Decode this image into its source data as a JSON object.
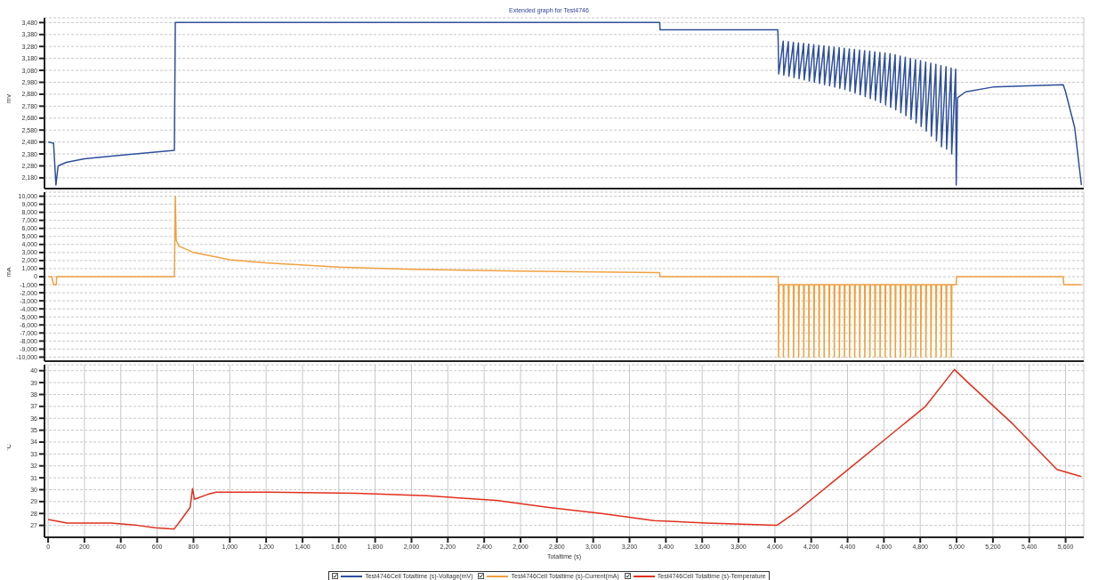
{
  "chart_data": [
    {
      "type": "line",
      "title": "Extended graph for Test4746",
      "ylabel": "mV",
      "grid": true,
      "legend": "bottom",
      "tick_labels": "y",
      "xlim": [
        -20,
        5700
      ],
      "xticks": [
        0,
        200,
        400,
        600,
        800,
        1000,
        1200,
        1400,
        1600,
        1800,
        2000,
        2200,
        2400,
        2600,
        2800,
        3000,
        3200,
        3400,
        3600,
        3800,
        4000,
        4200,
        4400,
        4600,
        4800,
        5000,
        5200,
        5400,
        5600
      ],
      "ylim": [
        2090,
        3520
      ],
      "yticks": [
        {
          "value": 2180,
          "label": "2,180"
        },
        {
          "value": 2280,
          "label": "2,280"
        },
        {
          "value": 2380,
          "label": "2,380"
        },
        {
          "value": 2480,
          "label": "2,480"
        },
        {
          "value": 2580,
          "label": "2,580"
        },
        {
          "value": 2680,
          "label": "2,680"
        },
        {
          "value": 2780,
          "label": "2,780"
        },
        {
          "value": 2880,
          "label": "2,880"
        },
        {
          "value": 2980,
          "label": "2,980"
        },
        {
          "value": 3080,
          "label": "3,080"
        },
        {
          "value": 3180,
          "label": "3,180"
        },
        {
          "value": 3280,
          "label": "3,280"
        },
        {
          "value": 3380,
          "label": "3,380"
        },
        {
          "value": 3480,
          "label": "3,480"
        }
      ],
      "x": [
        0,
        30,
        43,
        55,
        100,
        200,
        400,
        695,
        700,
        3366,
        3368,
        4016,
        4018,
        4021,
        4046,
        4049,
        4074,
        4077,
        4102,
        4105,
        4130,
        4133,
        4158,
        4161,
        4186,
        4189,
        4214,
        4217,
        4242,
        4245,
        4270,
        4273,
        4298,
        4301,
        4326,
        4329,
        4354,
        4357,
        4382,
        4385,
        4410,
        4413,
        4438,
        4441,
        4466,
        4469,
        4494,
        4497,
        4522,
        4525,
        4550,
        4553,
        4578,
        4581,
        4606,
        4609,
        4634,
        4637,
        4662,
        4665,
        4690,
        4693,
        4718,
        4721,
        4746,
        4749,
        4774,
        4777,
        4802,
        4805,
        4830,
        4833,
        4858,
        4861,
        4886,
        4889,
        4914,
        4917,
        4942,
        4945,
        4970,
        4973,
        4995,
        4998,
        5005,
        5050,
        5200,
        5587,
        5600,
        5650,
        5687
      ],
      "series": [
        {
          "name": "Test4746Cell Totaltime (s)-Voltage(mV)",
          "color": "#2e4f9a",
          "values": [
            2480,
            2470,
            2120,
            2280,
            2310,
            2340,
            2370,
            2410,
            3480,
            3480,
            3420,
            3420,
            3330,
            3050,
            3325,
            3040,
            3320,
            3030,
            3315,
            3020,
            3310,
            3010,
            3305,
            3000,
            3300,
            2990,
            3295,
            2980,
            3290,
            2970,
            3285,
            2960,
            3280,
            2950,
            3275,
            2940,
            3270,
            2930,
            3265,
            2920,
            3260,
            2905,
            3255,
            2890,
            3250,
            2875,
            3245,
            2860,
            3240,
            2845,
            3235,
            2830,
            3230,
            2810,
            3225,
            2790,
            3220,
            2770,
            3210,
            2750,
            3200,
            2725,
            3190,
            2700,
            3180,
            2670,
            3170,
            2640,
            3160,
            2610,
            3150,
            2570,
            3140,
            2530,
            3130,
            2490,
            3120,
            2440,
            3110,
            2420,
            3100,
            2380,
            3090,
            2120,
            2850,
            2900,
            2940,
            2960,
            2900,
            2600,
            2120
          ]
        }
      ]
    },
    {
      "type": "line",
      "ylabel": "mA",
      "grid": true,
      "legend": "bottom",
      "tick_labels": "y",
      "xlim": [
        -20,
        5700
      ],
      "xticks": [
        0,
        200,
        400,
        600,
        800,
        1000,
        1200,
        1400,
        1600,
        1800,
        2000,
        2200,
        2400,
        2600,
        2800,
        3000,
        3200,
        3400,
        3600,
        3800,
        4000,
        4200,
        4400,
        4600,
        4800,
        5000,
        5200,
        5400,
        5600
      ],
      "ylim": [
        -10500,
        10500
      ],
      "yticks": [
        {
          "value": -10000,
          "label": "-10,000"
        },
        {
          "value": -9000,
          "label": "-9,000"
        },
        {
          "value": -8000,
          "label": "-8,000"
        },
        {
          "value": -7000,
          "label": "-7,000"
        },
        {
          "value": -6000,
          "label": "-6,000"
        },
        {
          "value": -5000,
          "label": "-5,000"
        },
        {
          "value": -4000,
          "label": "-4,000"
        },
        {
          "value": -3000,
          "label": "-3,000"
        },
        {
          "value": -2000,
          "label": "-2,000"
        },
        {
          "value": -1000,
          "label": "-1,000"
        },
        0,
        {
          "value": 1000,
          "label": "1,000"
        },
        {
          "value": 2000,
          "label": "2,000"
        },
        {
          "value": 3000,
          "label": "3,000"
        },
        {
          "value": 4000,
          "label": "4,000"
        },
        {
          "value": 5000,
          "label": "5,000"
        },
        {
          "value": 6000,
          "label": "6,000"
        },
        {
          "value": 7000,
          "label": "7,000"
        },
        {
          "value": 8000,
          "label": "8,000"
        },
        {
          "value": 9000,
          "label": "9,000"
        },
        {
          "value": 10000,
          "label": "10,000"
        }
      ],
      "x": [
        0,
        20,
        30,
        45,
        47,
        695,
        700,
        705,
        720,
        800,
        1000,
        1200,
        1600,
        2000,
        2600,
        3366,
        3368,
        4018,
        4019,
        4020,
        4023,
        4046,
        4047,
        4050,
        4074,
        4075,
        4078,
        4102,
        4103,
        4106,
        4130,
        4131,
        4134,
        4158,
        4159,
        4162,
        4186,
        4187,
        4190,
        4214,
        4215,
        4218,
        4242,
        4243,
        4246,
        4270,
        4271,
        4274,
        4298,
        4299,
        4302,
        4326,
        4327,
        4330,
        4354,
        4355,
        4358,
        4382,
        4383,
        4386,
        4410,
        4411,
        4414,
        4438,
        4439,
        4442,
        4466,
        4467,
        4470,
        4494,
        4495,
        4498,
        4522,
        4523,
        4526,
        4550,
        4551,
        4554,
        4578,
        4579,
        4582,
        4606,
        4607,
        4610,
        4634,
        4635,
        4638,
        4662,
        4663,
        4666,
        4690,
        4691,
        4694,
        4718,
        4719,
        4722,
        4746,
        4747,
        4750,
        4774,
        4775,
        4778,
        4802,
        4803,
        4806,
        4830,
        4831,
        4834,
        4858,
        4859,
        4862,
        4886,
        4887,
        4890,
        4914,
        4915,
        4918,
        4942,
        4943,
        4946,
        4970,
        4971,
        4974,
        4998,
        5000,
        5587,
        5590,
        5687
      ],
      "series": [
        {
          "name": "Test4746Cell Totaltime (s)-Current(mA)",
          "color": "#f0a040",
          "values": [
            0,
            0,
            -1000,
            -1000,
            0,
            0,
            10000,
            4500,
            3800,
            3000,
            2100,
            1700,
            1200,
            900,
            700,
            500,
            0,
            0,
            -1000,
            -10000,
            -1000,
            -1000,
            -10000,
            -1000,
            -1000,
            -10000,
            -1000,
            -1000,
            -10000,
            -1000,
            -1000,
            -10000,
            -1000,
            -1000,
            -10000,
            -1000,
            -1000,
            -10000,
            -1000,
            -1000,
            -10000,
            -1000,
            -1000,
            -10000,
            -1000,
            -1000,
            -10000,
            -1000,
            -1000,
            -10000,
            -1000,
            -1000,
            -10000,
            -1000,
            -1000,
            -10000,
            -1000,
            -1000,
            -10000,
            -1000,
            -1000,
            -10000,
            -1000,
            -1000,
            -10000,
            -1000,
            -1000,
            -10000,
            -1000,
            -1000,
            -10000,
            -1000,
            -1000,
            -10000,
            -1000,
            -1000,
            -10000,
            -1000,
            -1000,
            -10000,
            -1000,
            -1000,
            -10000,
            -1000,
            -1000,
            -10000,
            -1000,
            -1000,
            -10000,
            -1000,
            -1000,
            -10000,
            -1000,
            -1000,
            -10000,
            -1000,
            -1000,
            -10000,
            -1000,
            -1000,
            -10000,
            -1000,
            -1000,
            -10000,
            -1000,
            -1000,
            -10000,
            -1000,
            -1000,
            -10000,
            -1000,
            -1000,
            -10000,
            -1000,
            -1000,
            -10000,
            -1000,
            -1000,
            -10000,
            -1000,
            -1000,
            -10000,
            -1000,
            -1000,
            0,
            0,
            -1000,
            -1000
          ]
        }
      ]
    },
    {
      "type": "line",
      "ylabel": "°C",
      "xlabel": "Totaltime (s)",
      "grid": true,
      "legend": "bottom",
      "xlim": [
        -20,
        5700
      ],
      "xticks": [
        0,
        200,
        400,
        600,
        800,
        {
          "value": 1000,
          "label": "1,000"
        },
        {
          "value": 1200,
          "label": "1,200"
        },
        {
          "value": 1400,
          "label": "1,400"
        },
        {
          "value": 1600,
          "label": "1,600"
        },
        {
          "value": 1800,
          "label": "1,800"
        },
        {
          "value": 2000,
          "label": "2,000"
        },
        {
          "value": 2200,
          "label": "2,200"
        },
        {
          "value": 2400,
          "label": "2,400"
        },
        {
          "value": 2600,
          "label": "2,600"
        },
        {
          "value": 2800,
          "label": "2,800"
        },
        {
          "value": 3000,
          "label": "3,000"
        },
        {
          "value": 3200,
          "label": "3,200"
        },
        {
          "value": 3400,
          "label": "3,400"
        },
        {
          "value": 3600,
          "label": "3,600"
        },
        {
          "value": 3800,
          "label": "3,800"
        },
        {
          "value": 4000,
          "label": "4,000"
        },
        {
          "value": 4200,
          "label": "4,200"
        },
        {
          "value": 4400,
          "label": "4,400"
        },
        {
          "value": 4600,
          "label": "4,600"
        },
        {
          "value": 4800,
          "label": "4,800"
        },
        {
          "value": 5000,
          "label": "5,000"
        },
        {
          "value": 5200,
          "label": "5,200"
        },
        {
          "value": 5400,
          "label": "5,400"
        },
        {
          "value": 5600,
          "label": "5,600"
        }
      ],
      "ylim": [
        26,
        40.5
      ],
      "yticks": [
        27,
        28,
        29,
        30,
        31,
        32,
        33,
        34,
        35,
        36,
        37,
        38,
        39,
        40
      ],
      "x": [
        0,
        106,
        347,
        492,
        588,
        694,
        733,
        781,
        795,
        805,
        877,
        925,
        1214,
        1696,
        2082,
        2467,
        2757,
        3046,
        3335,
        3624,
        4010,
        4106,
        4347,
        4588,
        4829,
        4988,
        5070,
        5311,
        5552,
        5687
      ],
      "series": [
        {
          "name": "Test4746Cell Totaltime (s)-Temperature",
          "color": "#e0301e",
          "values": [
            27.5,
            27.2,
            27.2,
            27.0,
            26.8,
            26.7,
            27.5,
            28.5,
            30.1,
            29.2,
            29.6,
            29.8,
            29.8,
            29.7,
            29.5,
            29.1,
            28.5,
            28.0,
            27.4,
            27.2,
            27.0,
            28.0,
            31.0,
            34.0,
            37.0,
            40.1,
            38.9,
            35.5,
            31.7,
            31.1
          ]
        }
      ]
    }
  ]
}
